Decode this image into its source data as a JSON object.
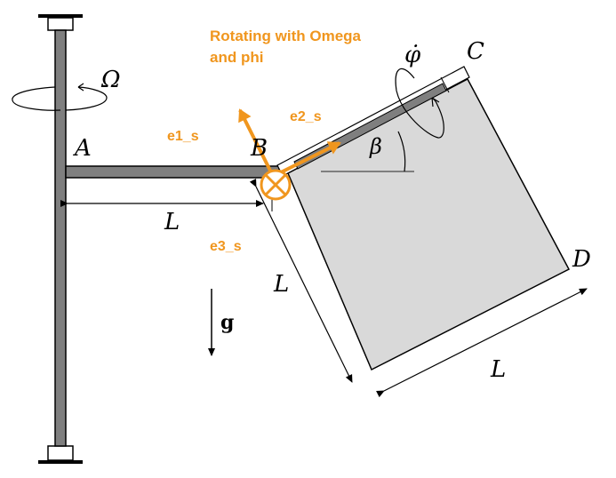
{
  "annotation": {
    "line1": "Rotating with Omega",
    "line2": "and phi",
    "e1": "e1_s",
    "e2": "e2_s",
    "e3": "e3_s"
  },
  "labels": {
    "omega": "Ω",
    "phi_dot": "φ̇",
    "A": "A",
    "B": "B",
    "C": "C",
    "D": "D",
    "beta": "β",
    "L_horizontal": "L",
    "L_diag_left": "L",
    "L_bottom": "L",
    "g": "g"
  },
  "colors": {
    "annotation": "#f0961e",
    "rod": "#7f7f7f",
    "plate": "#d9d9d9",
    "line": "#000000"
  }
}
